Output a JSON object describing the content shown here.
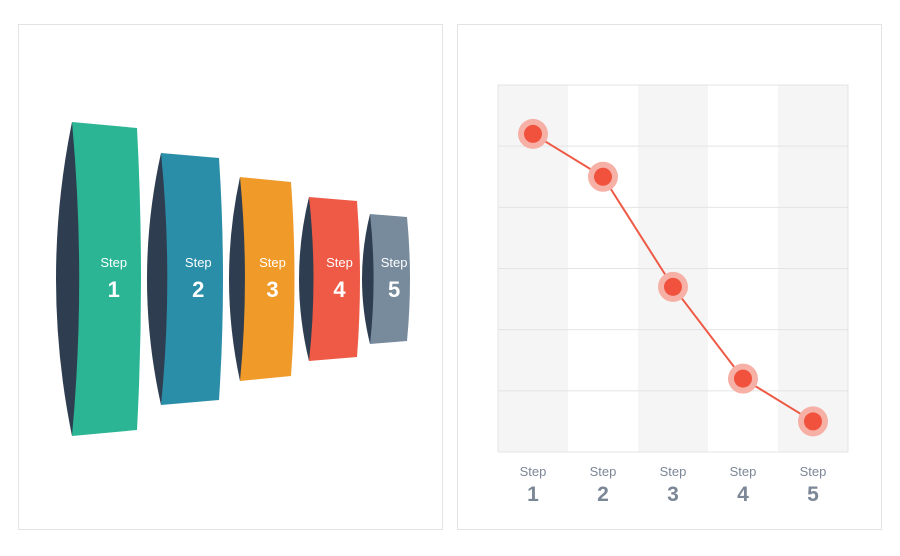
{
  "colors": {
    "dark_side": "#2e3e50",
    "line": "#ee5a45",
    "point": "#f0523e",
    "halo": "#f6b0a6",
    "stripe": "#f5f5f5",
    "grid": "#e4e4e4",
    "axis_text": "#7b8796"
  },
  "funnel": {
    "steps": [
      {
        "word": "Step",
        "num": "1",
        "color": "#2bb594"
      },
      {
        "word": "Step",
        "num": "2",
        "color": "#2b8ea8"
      },
      {
        "word": "Step",
        "num": "3",
        "color": "#f09a2a"
      },
      {
        "word": "Step",
        "num": "4",
        "color": "#ee5a45"
      },
      {
        "word": "Step",
        "num": "5",
        "color": "#778b9d"
      }
    ]
  },
  "chart_data": {
    "type": "line",
    "categories": [
      "Step 1",
      "Step 2",
      "Step 3",
      "Step 4",
      "Step 5"
    ],
    "category_labels": [
      {
        "word": "Step",
        "num": "1"
      },
      {
        "word": "Step",
        "num": "2"
      },
      {
        "word": "Step",
        "num": "3"
      },
      {
        "word": "Step",
        "num": "4"
      },
      {
        "word": "Step",
        "num": "5"
      }
    ],
    "values": [
      5.2,
      4.5,
      2.7,
      1.2,
      0.5
    ],
    "ylim": [
      0,
      6
    ],
    "grid": true,
    "title": "",
    "xlabel": "",
    "ylabel": ""
  }
}
